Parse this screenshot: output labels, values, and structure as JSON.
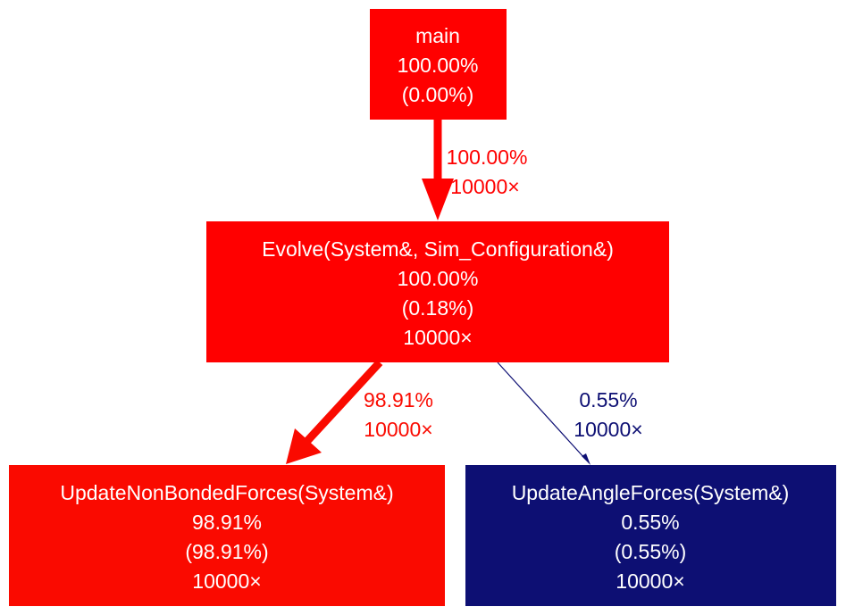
{
  "colors": {
    "hot": "#ff0000",
    "hot_alt": "#fa0a00",
    "cold": "#0d0f73",
    "text_on_node": "#ffffff"
  },
  "nodes": {
    "main": {
      "name": "main",
      "total": "100.00%",
      "self": "(0.00%)"
    },
    "evolve": {
      "name": "Evolve(System&, Sim_Configuration&)",
      "total": "100.00%",
      "self": "(0.18%)",
      "calls": "10000×"
    },
    "nonbonded": {
      "name": "UpdateNonBondedForces(System&)",
      "total": "98.91%",
      "self": "(98.91%)",
      "calls": "10000×"
    },
    "angle": {
      "name": "UpdateAngleForces(System&)",
      "total": "0.55%",
      "self": "(0.55%)",
      "calls": "10000×"
    }
  },
  "edges": {
    "main_to_evolve": {
      "percent": "100.00%",
      "calls": "10000×"
    },
    "evolve_to_nonbonded": {
      "percent": "98.91%",
      "calls": "10000×"
    },
    "evolve_to_angle": {
      "percent": "0.55%",
      "calls": "10000×"
    }
  }
}
